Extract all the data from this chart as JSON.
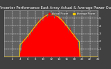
{
  "title": "Solar PV/Inverter Performance East Array Actual & Average Power Output",
  "title_fontsize": 3.8,
  "bg_color": "#404040",
  "plot_bg_color": "#606060",
  "fill_color": "#ff0000",
  "line_color": "#dd0000",
  "avg_line_color": "#ffcc00",
  "xlim": [
    0,
    144
  ],
  "ylim": [
    0,
    6
  ],
  "ylabel_fontsize": 3.0,
  "xlabel_fontsize": 2.8,
  "grid_color": "#ffffff",
  "num_points": 288,
  "x_tick_labels": [
    "2",
    "4",
    "6",
    "8",
    "10",
    "12",
    "14",
    "16",
    "18",
    "20",
    "22",
    "24"
  ],
  "y_tick_labels": [
    "1",
    "2",
    "3",
    "4",
    "5"
  ],
  "legend_items": [
    "Actual Power",
    "Average Power"
  ],
  "legend_colors": [
    "#ff0000",
    "#ffcc00"
  ],
  "title_color": "#ffffff",
  "tick_color": "#ffffff"
}
